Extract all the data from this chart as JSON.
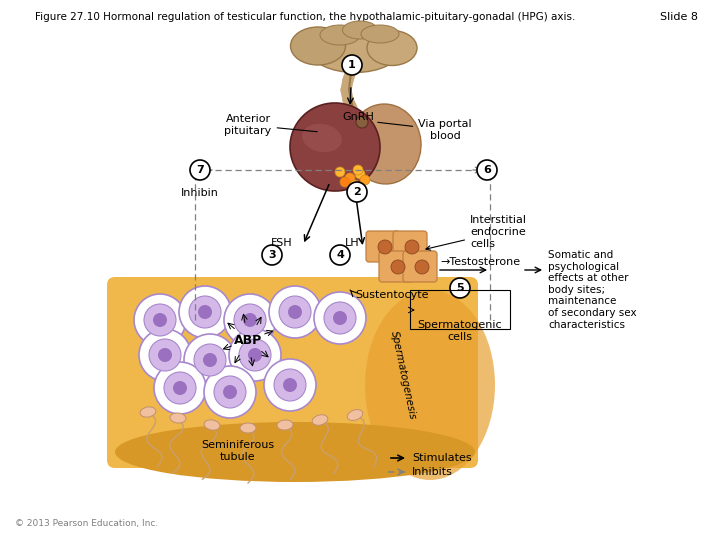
{
  "title": "Figure 27.10 Hormonal regulation of testicular function, the hypothalamic-pituitary-gonadal (HPG) axis.",
  "slide_label": "Slide 8",
  "copyright": "© 2013 Pearson Education, Inc.",
  "background_color": "#ffffff",
  "title_fontsize": 7.5,
  "hypo_color": "#D4B090",
  "hypo_edge": "#A08060",
  "pit_anterior_color": "#8B4040",
  "pit_anterior_edge": "#5A2020",
  "pit_posterior_color": "#C4956A",
  "pit_posterior_edge": "#A07040",
  "tubule_color": "#F0B84A",
  "tubule_edge": "#D49030",
  "cell_outer": "#FFFFFF",
  "cell_mid": "#D4B8E8",
  "cell_inner": "#9B70C0",
  "interstitial_color": "#E8A860",
  "interstitial_edge": "#C08040"
}
